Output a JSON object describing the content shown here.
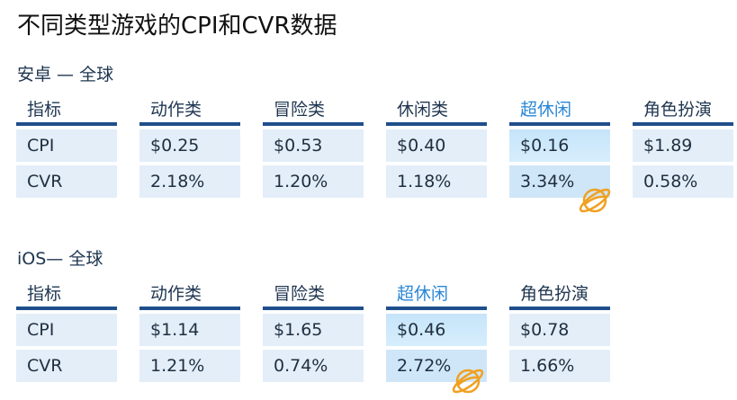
{
  "title": "不同类型游戏的CPI和CVR数据",
  "sections": [
    {
      "label": "安卓 — 全球",
      "columns": [
        {
          "header": "指标",
          "cpi": "CPI",
          "cvr": "CVR"
        },
        {
          "header": "动作类",
          "cpi": "$0.25",
          "cvr": "2.18%"
        },
        {
          "header": "冒险类",
          "cpi": "$0.53",
          "cvr": "1.20%"
        },
        {
          "header": "休闲类",
          "cpi": "$0.40",
          "cvr": "1.18%"
        },
        {
          "header": "超休闲",
          "cpi": "$0.16",
          "cvr": "3.34%"
        },
        {
          "header": "角色扮演",
          "cpi": "$1.89",
          "cvr": "0.58%"
        }
      ]
    },
    {
      "label": "iOS— 全球",
      "columns": [
        {
          "header": "指标",
          "cpi": "CPI",
          "cvr": "CVR"
        },
        {
          "header": "动作类",
          "cpi": "$1.14",
          "cvr": "1.21%"
        },
        {
          "header": "冒险类",
          "cpi": "$1.65",
          "cvr": "0.74%"
        },
        {
          "header": "超休闲",
          "cpi": "$0.46",
          "cvr": "2.72%"
        },
        {
          "header": "角色扮演",
          "cpi": "$0.78",
          "cvr": "1.66%"
        }
      ]
    }
  ],
  "colors": {
    "header_rule": "#1f4e8c",
    "cell_bg": "#e3eef9",
    "highlight_text": "#2a86d6",
    "planet": "#f0a020"
  },
  "icons": {
    "highlight_marker": "planet-icon"
  }
}
